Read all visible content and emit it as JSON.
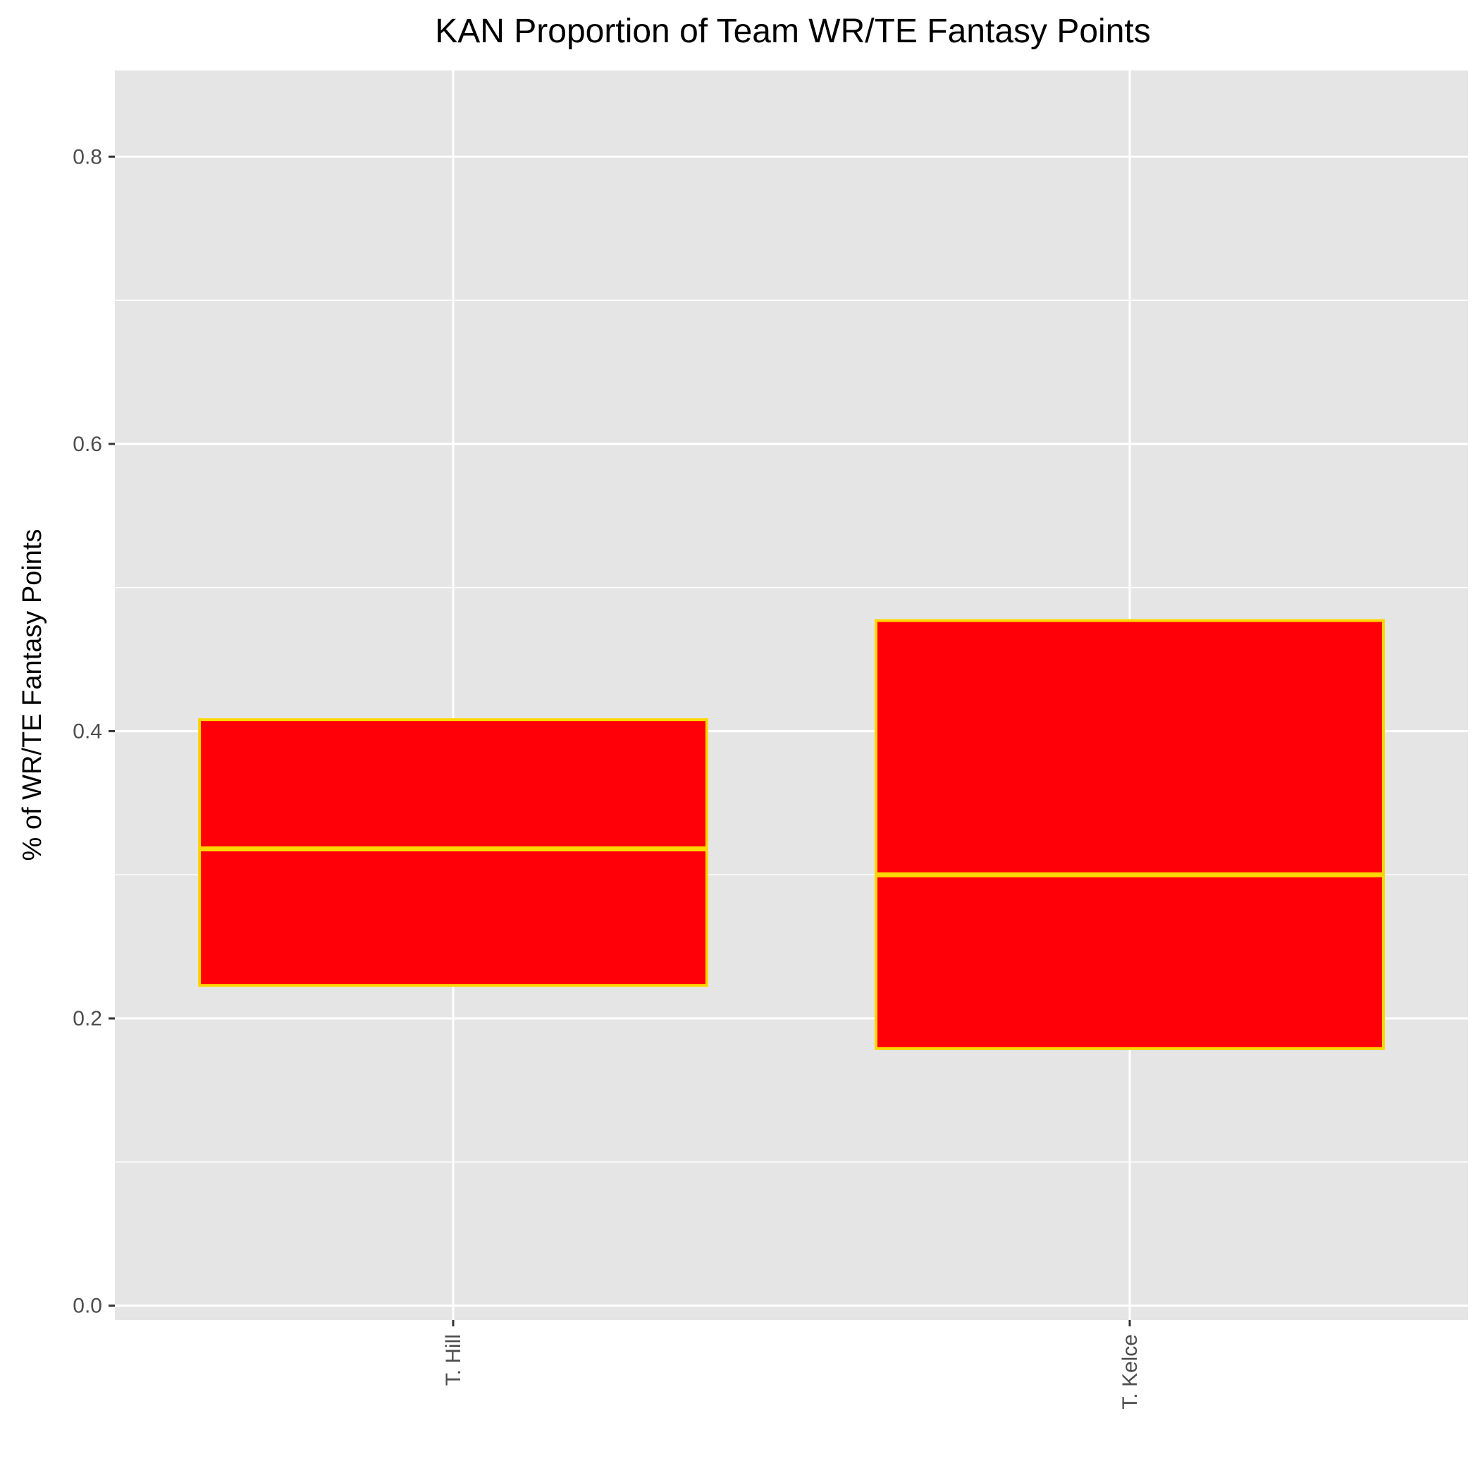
{
  "chart_data": {
    "type": "boxplot",
    "title": "KAN Proportion of Team WR/TE Fantasy Points",
    "xlabel": "",
    "ylabel": "% of WR/TE Fantasy Points",
    "ylim": [
      -0.01,
      0.86
    ],
    "yticks": [
      0.0,
      0.2,
      0.4,
      0.6,
      0.8
    ],
    "ytick_labels": [
      "0.0",
      "0.2",
      "0.4",
      "0.6",
      "0.8"
    ],
    "grid": true,
    "categories": [
      "T. Hill",
      "T. Kelce"
    ],
    "boxes": [
      {
        "category": "T. Hill",
        "q1": 0.223,
        "median": 0.318,
        "q3": 0.408
      },
      {
        "category": "T. Kelce",
        "q1": 0.179,
        "median": 0.3,
        "q3": 0.477
      }
    ],
    "colors": {
      "box_fill": "#ff0008",
      "box_outline": "#ffd700",
      "panel_background": "#e5e5e5",
      "grid": "#ffffff",
      "tick_mark": "#333333"
    }
  }
}
